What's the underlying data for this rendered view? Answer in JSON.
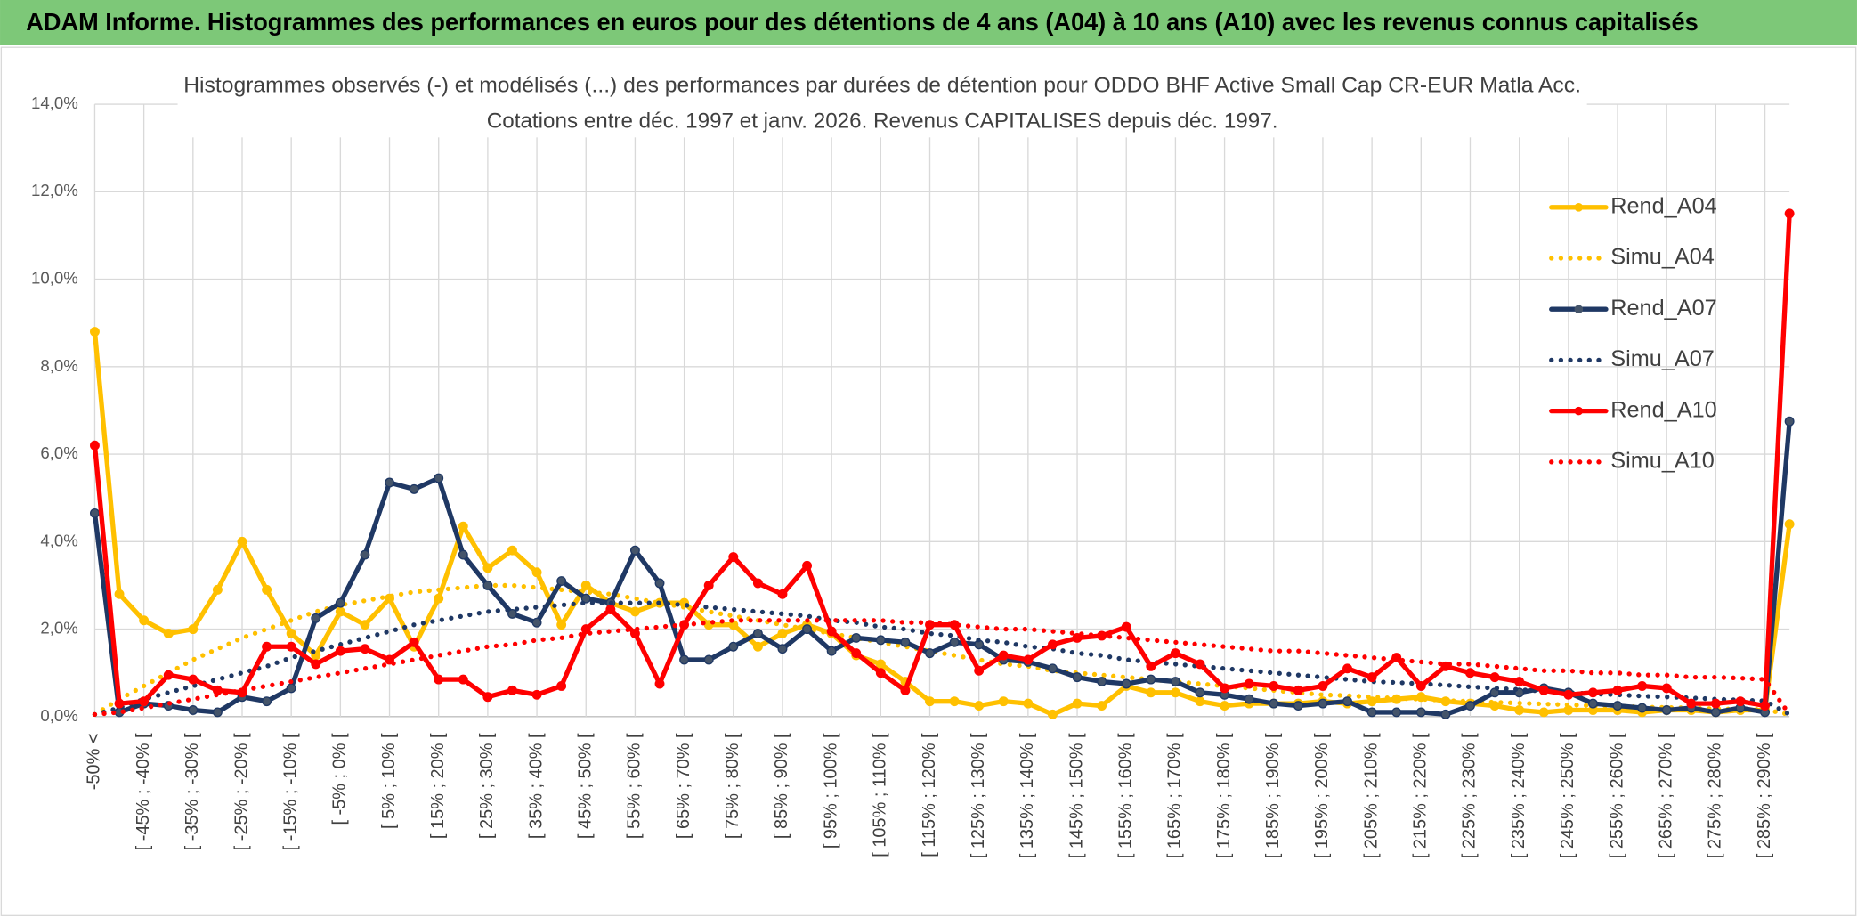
{
  "chart_data": {
    "type": "line",
    "title": "ADAM Informe. Histogrammes des performances en euros pour des détentions de 4 ans (A04) à 10 ans (A10) avec les revenus connus capitalisés",
    "subtitle": [
      "Histogrammes observés (-) et modélisés (...) des performances par durées de détention pour ODDO BHF Active Small Cap CR-EUR Matla Acc.",
      "Cotations entre déc. 1997 et janv. 2026. Revenus CAPITALISES depuis déc. 1997."
    ],
    "categories": [
      "-50% <",
      null,
      "[ -45% ; -40% [",
      null,
      "[ -35% ; -30% [",
      null,
      "[ -25% ; -20% [",
      null,
      "[ -15% ; -10% [",
      null,
      "[ -5% ; 0% [",
      null,
      "[ 5% ; 10% [",
      null,
      "[ 15% ; 20% [",
      null,
      "[ 25% ; 30% [",
      null,
      "[ 35% ; 40% [",
      null,
      "[ 45% ; 50% [",
      null,
      "[ 55% ; 60% [",
      null,
      "[ 65% ; 70% [",
      null,
      "[ 75% ; 80% [",
      null,
      "[ 85% ; 90% [",
      null,
      "[ 95% ; 100% [",
      null,
      "[ 105% ; 110% [",
      null,
      "[ 115% ; 120% [",
      null,
      "[ 125% ; 130% [",
      null,
      "[ 135% ; 140% [",
      null,
      "[ 145% ; 150% [",
      null,
      "[ 155% ; 160% [",
      null,
      "[ 165% ; 170% [",
      null,
      "[ 175% ; 180% [",
      null,
      "[ 185% ; 190% [",
      null,
      "[ 195% ; 200% [",
      null,
      "[ 205% ; 210% [",
      null,
      "[ 215% ; 220% [",
      null,
      "[ 225% ; 230% [",
      null,
      "[ 235% ; 240% [",
      null,
      "[ 245% ; 250% [",
      null,
      "[ 255% ; 260% [",
      null,
      "[ 265% ; 270% [",
      null,
      "[ 275% ; 280% [",
      null,
      "[ 285% ; 290% [",
      null
    ],
    "ylim": [
      0,
      14
    ],
    "yticks": [
      {
        "value": 0,
        "label": "0,0%"
      },
      {
        "value": 2,
        "label": "2,0%"
      },
      {
        "value": 4,
        "label": "4,0%"
      },
      {
        "value": 6,
        "label": "6,0%"
      },
      {
        "value": 8,
        "label": "8,0%"
      },
      {
        "value": 10,
        "label": "10,0%"
      },
      {
        "value": 12,
        "label": "12,0%"
      },
      {
        "value": 14,
        "label": "14,0%"
      }
    ],
    "grid": true,
    "legend": "right",
    "series": [
      {
        "name": "Rend_A04",
        "color": "#FFC000",
        "style": "solid",
        "markers": true,
        "values": [
          8.8,
          2.8,
          2.2,
          1.9,
          2.0,
          2.9,
          4.0,
          2.9,
          1.9,
          1.4,
          2.4,
          2.1,
          2.7,
          1.6,
          2.7,
          4.35,
          3.4,
          3.8,
          3.3,
          2.1,
          3.0,
          2.6,
          2.4,
          2.6,
          2.6,
          2.1,
          2.1,
          1.6,
          1.9,
          2.1,
          1.9,
          1.4,
          1.2,
          0.8,
          0.35,
          0.35,
          0.25,
          0.35,
          0.3,
          0.05,
          0.3,
          0.25,
          0.7,
          0.55,
          0.55,
          0.35,
          0.25,
          0.3,
          0.3,
          0.3,
          0.35,
          0.3,
          0.35,
          0.4,
          0.45,
          0.35,
          0.3,
          0.25,
          0.15,
          0.1,
          0.15,
          0.15,
          0.15,
          0.1,
          0.15,
          0.15,
          0.1,
          0.15,
          0.15,
          4.4
        ]
      },
      {
        "name": "Simu_A04",
        "color": "#FFC000",
        "style": "dotted",
        "markers": false,
        "values": [
          0.05,
          0.4,
          0.7,
          1.0,
          1.3,
          1.55,
          1.8,
          2.0,
          2.2,
          2.4,
          2.55,
          2.65,
          2.75,
          2.85,
          2.9,
          2.95,
          3.0,
          3.0,
          2.95,
          2.9,
          2.85,
          2.8,
          2.7,
          2.6,
          2.5,
          2.4,
          2.3,
          2.2,
          2.1,
          2.0,
          1.9,
          1.8,
          1.7,
          1.6,
          1.5,
          1.4,
          1.3,
          1.2,
          1.15,
          1.05,
          1.0,
          0.95,
          0.9,
          0.85,
          0.8,
          0.75,
          0.7,
          0.65,
          0.6,
          0.55,
          0.5,
          0.48,
          0.45,
          0.42,
          0.4,
          0.37,
          0.35,
          0.33,
          0.31,
          0.29,
          0.27,
          0.25,
          0.24,
          0.22,
          0.21,
          0.2,
          0.18,
          0.17,
          0.16,
          0.05
        ]
      },
      {
        "name": "Rend_A07",
        "color": "#1F3864",
        "style": "solid",
        "markers": true,
        "values": [
          4.65,
          0.1,
          0.3,
          0.25,
          0.15,
          0.1,
          0.45,
          0.35,
          0.65,
          2.25,
          2.6,
          3.7,
          5.35,
          5.2,
          5.45,
          3.7,
          3.0,
          2.35,
          2.15,
          3.1,
          2.7,
          2.6,
          3.8,
          3.05,
          1.3,
          1.3,
          1.6,
          1.9,
          1.55,
          2.0,
          1.5,
          1.8,
          1.75,
          1.7,
          1.45,
          1.7,
          1.65,
          1.3,
          1.25,
          1.1,
          0.9,
          0.8,
          0.75,
          0.85,
          0.8,
          0.55,
          0.5,
          0.4,
          0.3,
          0.25,
          0.3,
          0.35,
          0.1,
          0.1,
          0.1,
          0.05,
          0.25,
          0.55,
          0.55,
          0.65,
          0.55,
          0.3,
          0.25,
          0.2,
          0.15,
          0.2,
          0.1,
          0.2,
          0.1,
          6.75
        ]
      },
      {
        "name": "Simu_A07",
        "color": "#1F3864",
        "style": "dotted",
        "markers": false,
        "values": [
          0.05,
          0.2,
          0.4,
          0.55,
          0.7,
          0.85,
          1.0,
          1.15,
          1.35,
          1.5,
          1.65,
          1.8,
          1.95,
          2.1,
          2.2,
          2.3,
          2.4,
          2.45,
          2.5,
          2.55,
          2.6,
          2.6,
          2.6,
          2.6,
          2.55,
          2.5,
          2.45,
          2.4,
          2.35,
          2.3,
          2.2,
          2.15,
          2.05,
          2.0,
          1.9,
          1.85,
          1.75,
          1.7,
          1.6,
          1.55,
          1.45,
          1.4,
          1.3,
          1.25,
          1.2,
          1.15,
          1.1,
          1.05,
          1.0,
          0.95,
          0.9,
          0.85,
          0.8,
          0.78,
          0.75,
          0.72,
          0.68,
          0.65,
          0.62,
          0.58,
          0.55,
          0.52,
          0.5,
          0.47,
          0.45,
          0.43,
          0.4,
          0.38,
          0.36,
          0.05
        ]
      },
      {
        "name": "Rend_A10",
        "color": "#FF0000",
        "style": "solid",
        "markers": true,
        "values": [
          6.2,
          0.3,
          0.35,
          0.95,
          0.85,
          0.6,
          0.55,
          1.6,
          1.6,
          1.2,
          1.5,
          1.55,
          1.3,
          1.7,
          0.85,
          0.85,
          0.45,
          0.6,
          0.5,
          0.7,
          2.0,
          2.45,
          1.9,
          0.75,
          2.1,
          3.0,
          3.65,
          3.05,
          2.8,
          3.45,
          1.95,
          1.45,
          1.0,
          0.6,
          2.1,
          2.1,
          1.05,
          1.4,
          1.3,
          1.65,
          1.8,
          1.85,
          2.05,
          1.15,
          1.45,
          1.2,
          0.65,
          0.75,
          0.7,
          0.6,
          0.7,
          1.1,
          0.9,
          1.35,
          0.7,
          1.15,
          1.0,
          0.9,
          0.8,
          0.6,
          0.5,
          0.55,
          0.6,
          0.7,
          0.65,
          0.3,
          0.3,
          0.35,
          0.25,
          11.5
        ]
      },
      {
        "name": "Simu_A10",
        "color": "#FF0000",
        "style": "dotted",
        "markers": false,
        "values": [
          0.05,
          0.1,
          0.2,
          0.3,
          0.4,
          0.5,
          0.6,
          0.7,
          0.8,
          0.9,
          1.0,
          1.1,
          1.2,
          1.3,
          1.4,
          1.5,
          1.6,
          1.65,
          1.75,
          1.8,
          1.9,
          1.95,
          2.0,
          2.05,
          2.1,
          2.15,
          2.2,
          2.2,
          2.2,
          2.2,
          2.2,
          2.2,
          2.2,
          2.15,
          2.15,
          2.1,
          2.05,
          2.0,
          2.0,
          1.95,
          1.9,
          1.85,
          1.8,
          1.75,
          1.7,
          1.65,
          1.6,
          1.55,
          1.5,
          1.5,
          1.45,
          1.4,
          1.35,
          1.3,
          1.25,
          1.2,
          1.2,
          1.15,
          1.1,
          1.05,
          1.05,
          1.0,
          1.0,
          0.95,
          0.95,
          0.9,
          0.9,
          0.88,
          0.85,
          0.05
        ]
      }
    ]
  }
}
